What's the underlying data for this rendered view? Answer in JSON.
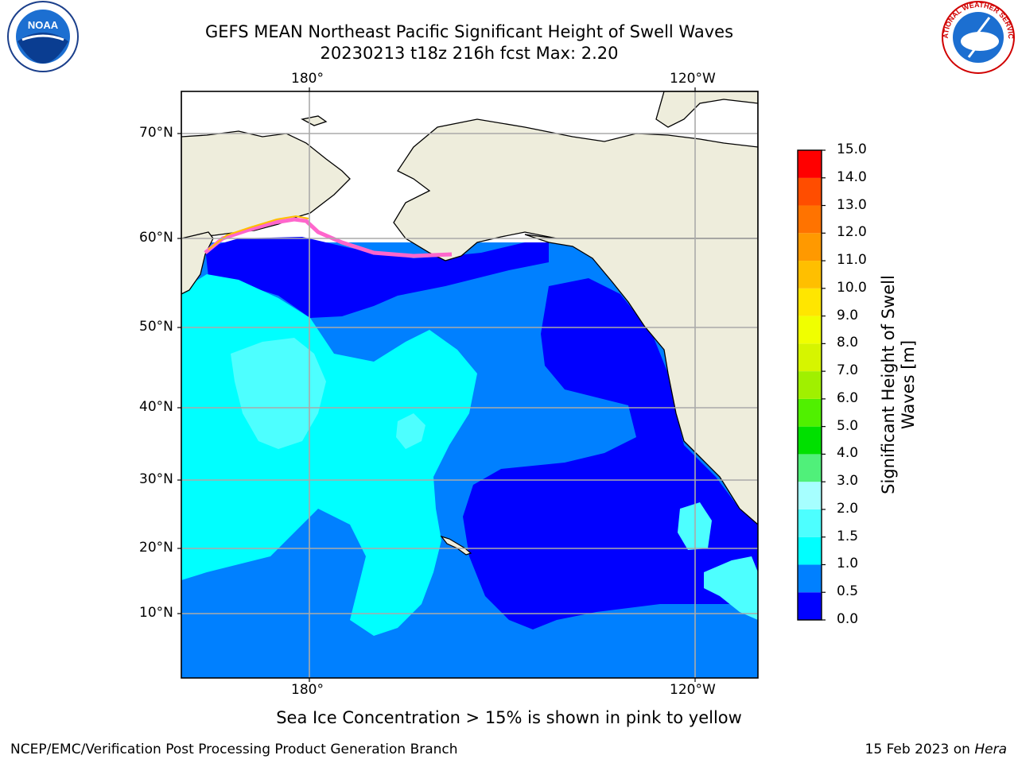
{
  "header": {
    "title_line1": "GEFS MEAN Northeast Pacific Significant Height of Swell Waves",
    "title_line2": "20230213 t18z 216h fcst   Max: 2.20"
  },
  "logos": {
    "left_text": "NOAA",
    "right_text": "NATIONAL WEATHER SERVICE"
  },
  "axes": {
    "lon_labels": [
      "180°",
      "120°W"
    ],
    "lat_labels": [
      "70°N",
      "60°N",
      "50°N",
      "40°N",
      "30°N",
      "20°N",
      "10°N"
    ]
  },
  "colorbar": {
    "label": "Significant Height of Swell Waves [m]",
    "label_line1": "Significant Height of Swell",
    "label_line2": "Waves [m]",
    "ticks": [
      "15.0",
      "14.0",
      "13.0",
      "12.0",
      "11.0",
      "10.0",
      "9.0",
      "8.0",
      "7.0",
      "6.0",
      "5.0",
      "4.0",
      "3.0",
      "2.0",
      "1.5",
      "1.0",
      "0.5",
      "0.0"
    ],
    "colors_bottom_to_top": [
      "#0000ff",
      "#0080ff",
      "#00ffff",
      "#4dffff",
      "#a6ffff",
      "#50f07a",
      "#00e000",
      "#50f000",
      "#a0f000",
      "#d6f500",
      "#f0ff00",
      "#ffe600",
      "#ffbf00",
      "#ff9900",
      "#ff7300",
      "#ff4d00",
      "#ff2600",
      "#ff0000"
    ]
  },
  "map_colors": {
    "land": "#eeeddc",
    "ocean_0_0.5": "#0000ff",
    "ocean_0.5_1.0": "#0080ff",
    "ocean_1.0_1.5": "#00ffff",
    "ocean_1.5_2.0": "#4dffff",
    "ocean_2.0_3.0": "#a6ffff",
    "ice": "#ff66cc",
    "grid": "#aaaaaa"
  },
  "notes": {
    "ice_note": "Sea Ice Concentration > 15% is shown in pink to yellow"
  },
  "footer": {
    "left": "NCEP/EMC/Verification Post Processing Product Generation Branch",
    "right_date": "15 Feb 2023 on ",
    "right_host": "Hera"
  }
}
